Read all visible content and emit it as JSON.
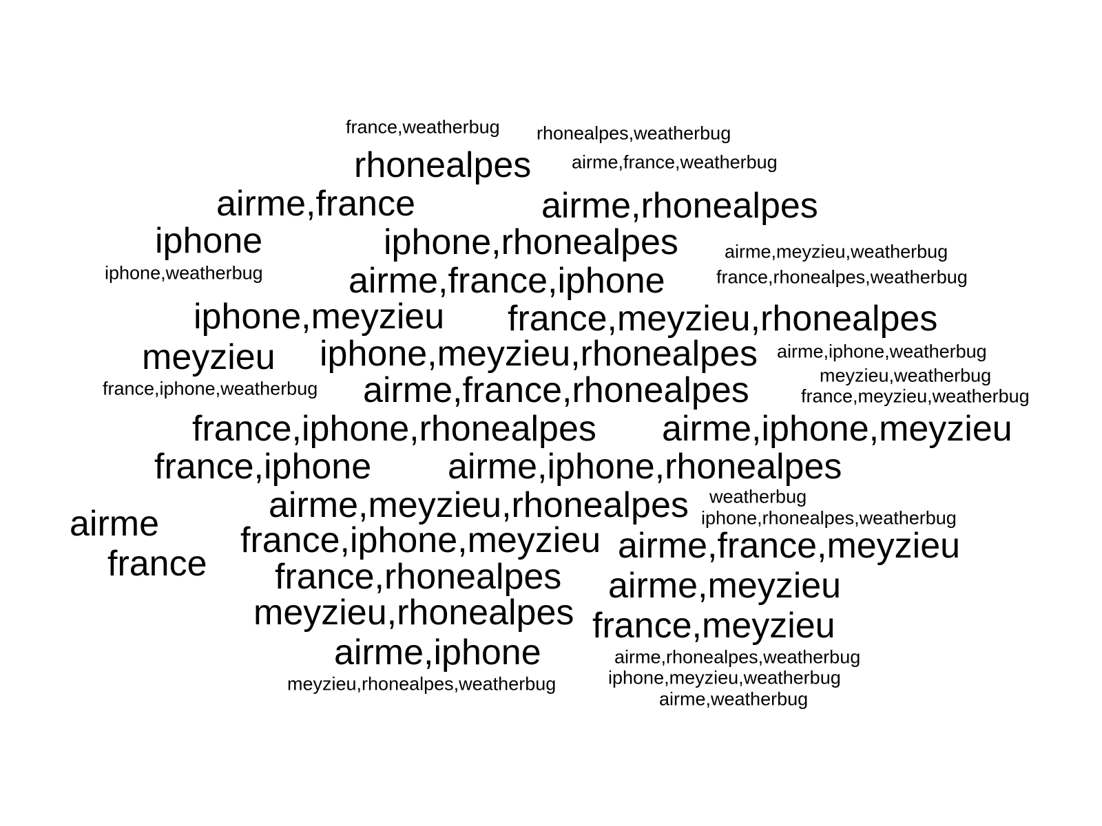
{
  "words": [
    {
      "text": "france,weatherbug",
      "weight": 1
    },
    {
      "text": "rhonealpes,weatherbug",
      "weight": 1
    },
    {
      "text": "rhonealpes",
      "weight": 3
    },
    {
      "text": "airme,france,weatherbug",
      "weight": 1
    },
    {
      "text": "airme,france",
      "weight": 3
    },
    {
      "text": "airme,rhonealpes",
      "weight": 3
    },
    {
      "text": "iphone",
      "weight": 3
    },
    {
      "text": "iphone,rhonealpes",
      "weight": 3
    },
    {
      "text": "airme,meyzieu,weatherbug",
      "weight": 1
    },
    {
      "text": "iphone,weatherbug",
      "weight": 1
    },
    {
      "text": "airme,france,iphone",
      "weight": 3
    },
    {
      "text": "france,rhonealpes,weatherbug",
      "weight": 1
    },
    {
      "text": "iphone,meyzieu",
      "weight": 3
    },
    {
      "text": "france,meyzieu,rhonealpes",
      "weight": 3
    },
    {
      "text": "meyzieu",
      "weight": 3
    },
    {
      "text": "iphone,meyzieu,rhonealpes",
      "weight": 3
    },
    {
      "text": "airme,iphone,weatherbug",
      "weight": 1
    },
    {
      "text": "meyzieu,weatherbug",
      "weight": 1
    },
    {
      "text": "france,iphone,weatherbug",
      "weight": 1
    },
    {
      "text": "airme,france,rhonealpes",
      "weight": 3
    },
    {
      "text": "france,meyzieu,weatherbug",
      "weight": 1
    },
    {
      "text": "france,iphone,rhonealpes",
      "weight": 3
    },
    {
      "text": "airme,iphone,meyzieu",
      "weight": 3
    },
    {
      "text": "france,iphone",
      "weight": 3
    },
    {
      "text": "airme,iphone,rhonealpes",
      "weight": 3
    },
    {
      "text": "weatherbug",
      "weight": 1
    },
    {
      "text": "airme,meyzieu,rhonealpes",
      "weight": 3
    },
    {
      "text": "iphone,rhonealpes,weatherbug",
      "weight": 1
    },
    {
      "text": "airme",
      "weight": 3
    },
    {
      "text": "france,iphone,meyzieu",
      "weight": 3
    },
    {
      "text": "airme,france,meyzieu",
      "weight": 3
    },
    {
      "text": "france",
      "weight": 3
    },
    {
      "text": "france,rhonealpes",
      "weight": 3
    },
    {
      "text": "airme,meyzieu",
      "weight": 3
    },
    {
      "text": "meyzieu,rhonealpes",
      "weight": 3
    },
    {
      "text": "france,meyzieu",
      "weight": 3
    },
    {
      "text": "airme,iphone",
      "weight": 3
    },
    {
      "text": "airme,rhonealpes,weatherbug",
      "weight": 1
    },
    {
      "text": "iphone,meyzieu,weatherbug",
      "weight": 1
    },
    {
      "text": "meyzieu,rhonealpes,weatherbug",
      "weight": 1
    },
    {
      "text": "airme,weatherbug",
      "weight": 1
    }
  ]
}
